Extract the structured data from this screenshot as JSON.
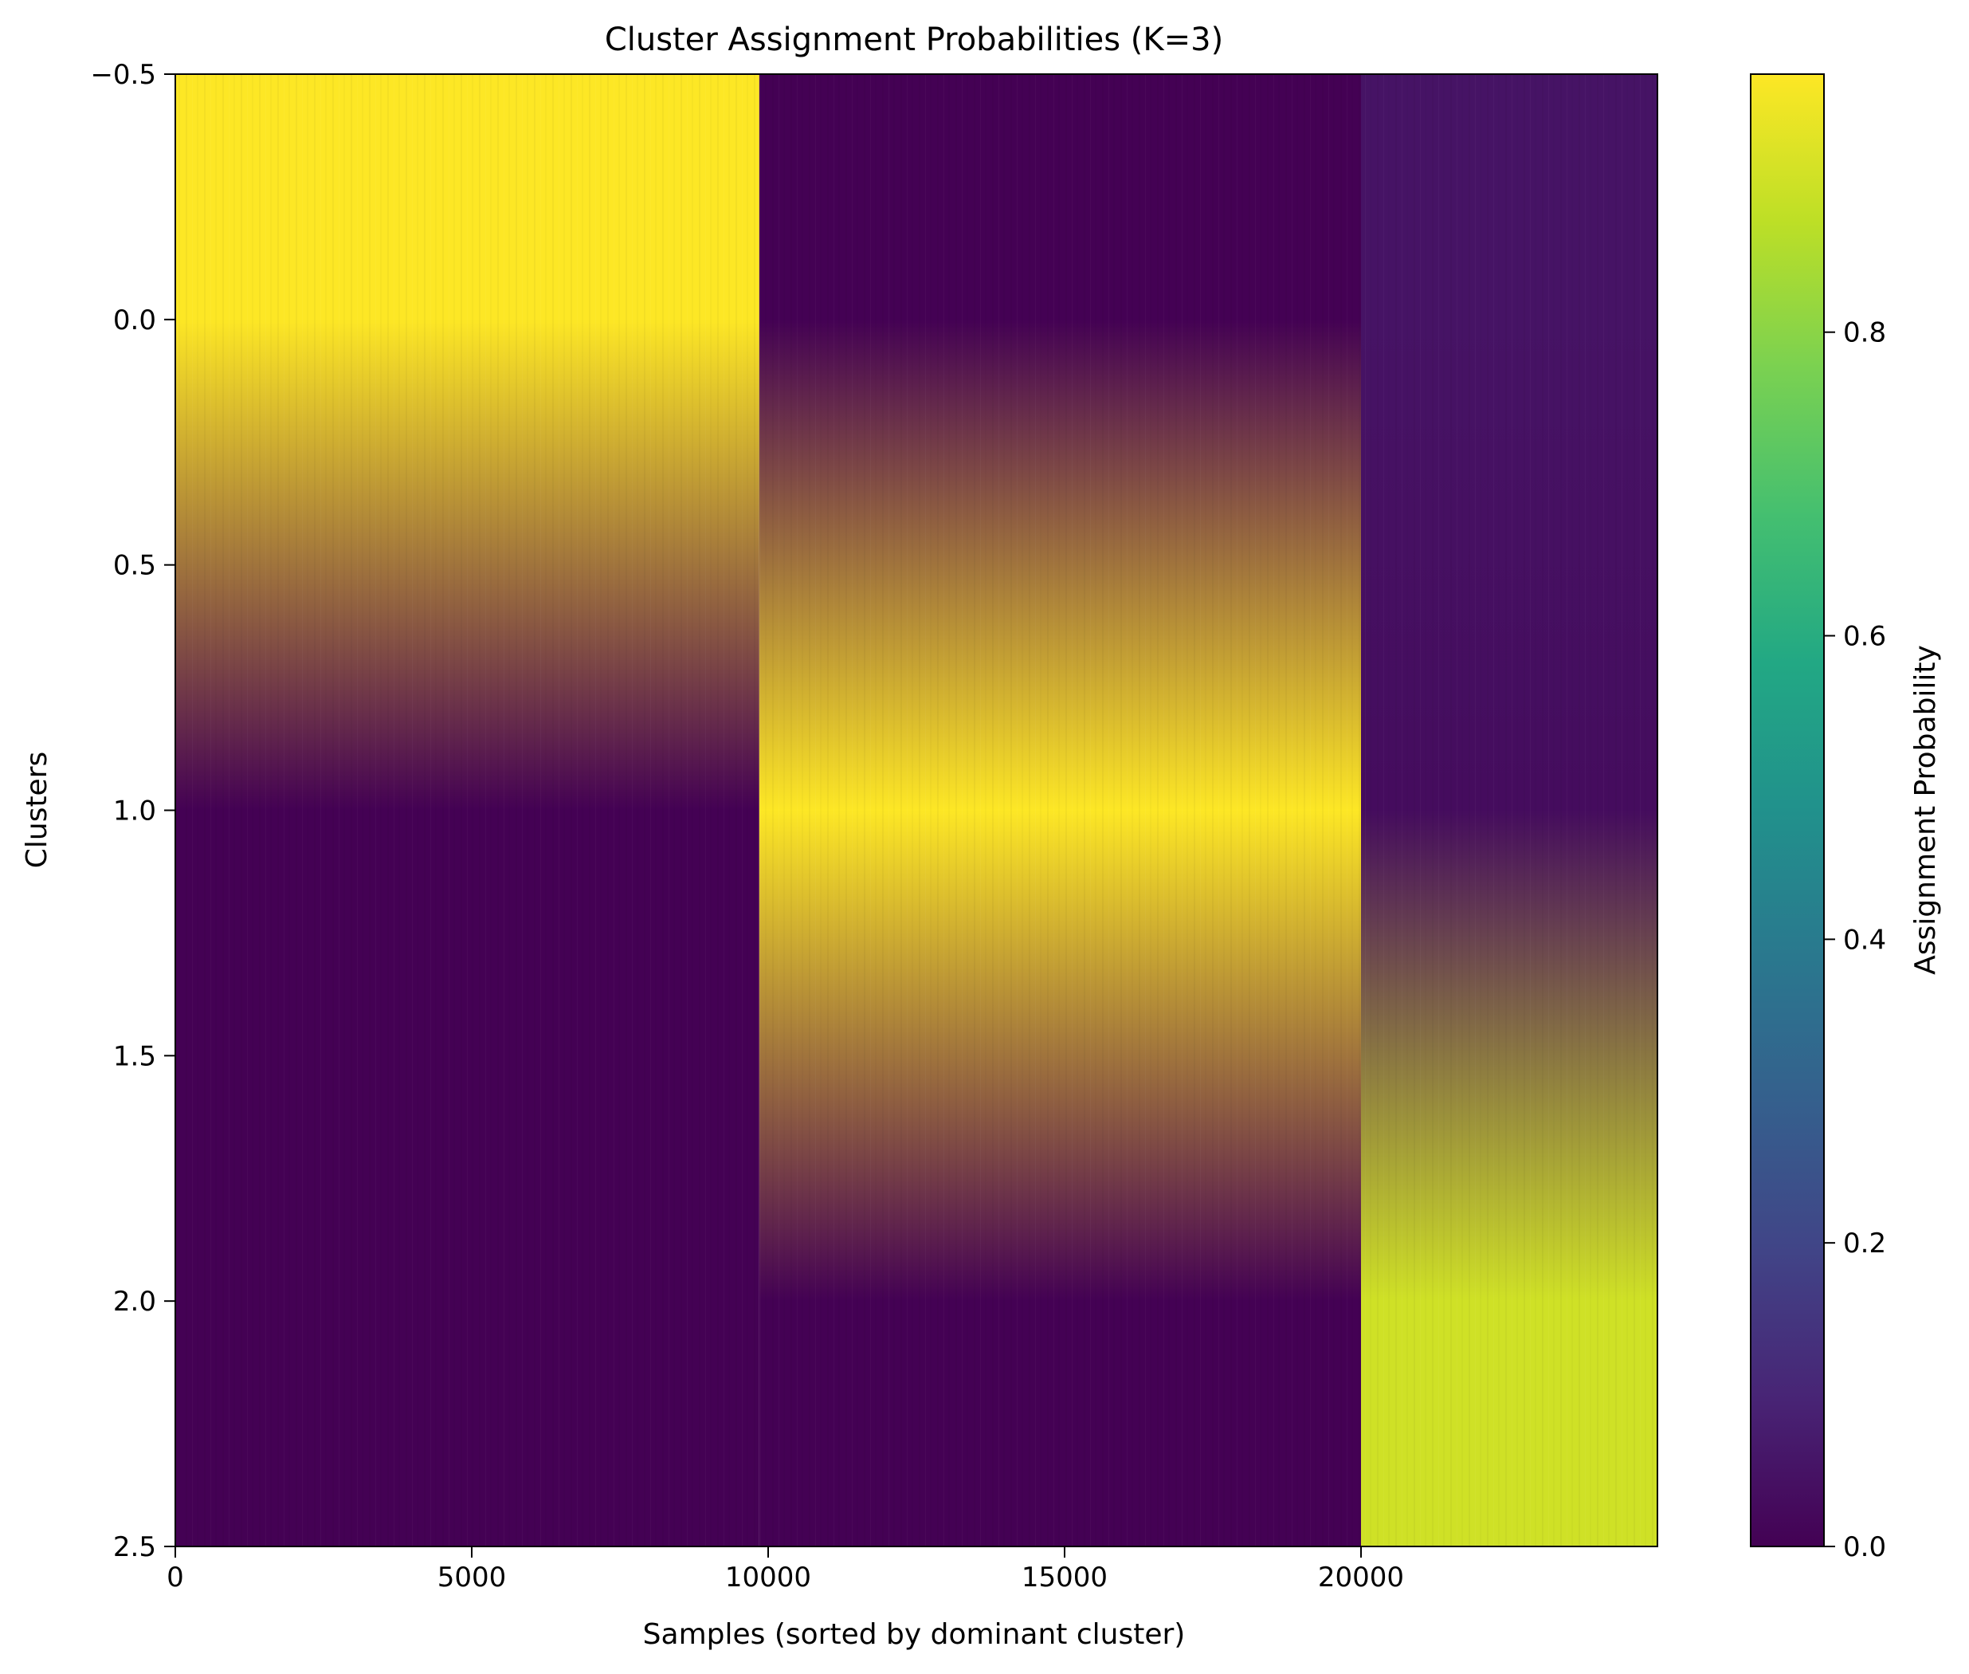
{
  "chart_data": {
    "type": "heatmap",
    "title": "Cluster Assignment Probabilities (K=3)",
    "xlabel": "Samples (sorted by dominant cluster)",
    "ylabel": "Clusters",
    "xlim": [
      0,
      25000
    ],
    "ylim": [
      2.5,
      -0.5
    ],
    "x_ticks": [
      0,
      5000,
      10000,
      15000,
      20000
    ],
    "x_tick_labels": [
      "0",
      "5000",
      "10000",
      "15000",
      "20000"
    ],
    "y_ticks": [
      -0.5,
      0.0,
      0.5,
      1.0,
      1.5,
      2.0,
      2.5
    ],
    "y_tick_labels": [
      "−0.5",
      "0.0",
      "0.5",
      "1.0",
      "1.5",
      "2.0",
      "2.5"
    ],
    "rows": [
      0,
      1,
      2
    ],
    "column_groups": [
      {
        "x_start": 0,
        "x_end": 9850,
        "probabilities": [
          0.97,
          0.0,
          0.0
        ]
      },
      {
        "x_start": 9850,
        "x_end": 20000,
        "probabilities": [
          0.0,
          0.97,
          0.0
        ]
      },
      {
        "x_start": 20000,
        "x_end": 25000,
        "probabilities": [
          0.05,
          0.03,
          0.9
        ]
      }
    ],
    "interpolation": "smooth vertical blending between rows",
    "colorbar": {
      "label": "Assignment Probability",
      "colormap": "viridis",
      "range": [
        0.0,
        0.97
      ],
      "ticks": [
        0.0,
        0.2,
        0.4,
        0.6,
        0.8
      ],
      "tick_labels": [
        "0.0",
        "0.2",
        "0.4",
        "0.6",
        "0.8"
      ]
    },
    "colors": {
      "viridis_low": "#440154",
      "viridis_high": "#fde725"
    }
  }
}
